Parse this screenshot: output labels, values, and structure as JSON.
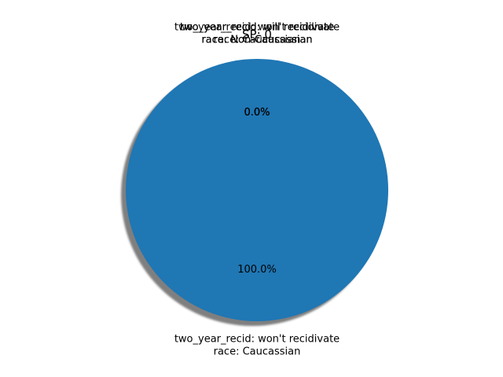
{
  "chart_data": {
    "type": "pie",
    "title": "SP: 0",
    "shadow": true,
    "slices": [
      {
        "label_lines": [
          "two_year_recid: won't recidivate",
          "race: Caucassian"
        ],
        "value": 100.0,
        "pct_label": "100.0%",
        "color": "#1f77b4"
      },
      {
        "label_lines": [
          "two_year_recid: will recidivate",
          "race: Caucassian"
        ],
        "value": 0.0,
        "pct_label": "0.0%",
        "color": "#ff7f0e"
      },
      {
        "label_lines": [
          "two_year_recid: won't recidivate",
          "race: Non-Caucassian"
        ],
        "value": 0.0,
        "pct_label": "0.0%",
        "color": "#2ca02c"
      },
      {
        "label_lines": [
          "two_year_recid: will recidivate",
          "race: Non-Caucassian"
        ],
        "value": 0.0,
        "pct_label": "0.0%",
        "color": "#d62728"
      }
    ]
  }
}
